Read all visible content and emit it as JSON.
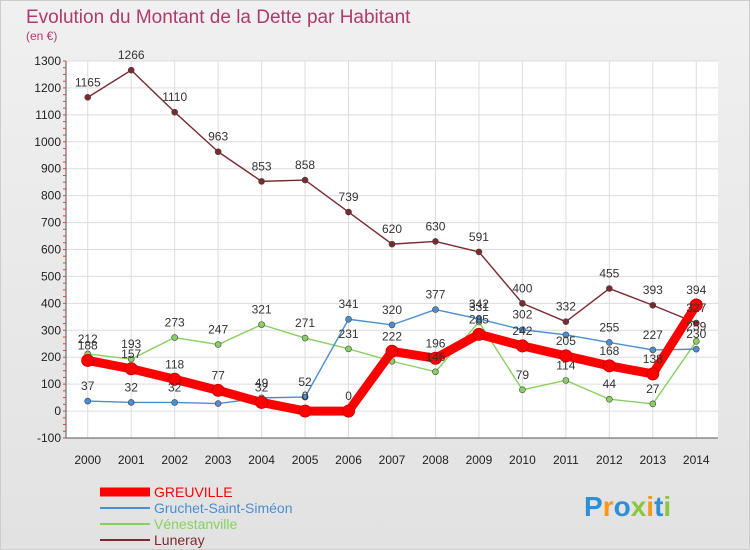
{
  "chart_data": {
    "type": "line",
    "title": "Evolution du Montant de la Dette par Habitant",
    "subtitle": "(en €)",
    "x": [
      "2000",
      "2001",
      "2002",
      "2003",
      "2004",
      "2005",
      "2006",
      "2007",
      "2008",
      "2009",
      "2010",
      "2011",
      "2012",
      "2013",
      "2014"
    ],
    "ylim": [
      -100,
      1300
    ],
    "yticks": [
      -100,
      0,
      100,
      200,
      300,
      400,
      500,
      600,
      700,
      800,
      900,
      1000,
      1100,
      1200,
      1300
    ],
    "grid": true,
    "legend_position": "bottom-left",
    "series": [
      {
        "name": "GREUVILLE",
        "color": "#ff0000",
        "values": [
          188,
          157,
          118,
          77,
          32,
          0,
          0,
          222,
          196,
          285,
          242,
          205,
          168,
          138,
          394
        ]
      },
      {
        "name": "Gruchet-Saint-Siméon",
        "color": "#4a8fd0",
        "values": [
          37,
          32,
          32,
          28,
          49,
          52,
          341,
          320,
          377,
          342,
          302,
          283,
          255,
          227,
          230
        ]
      },
      {
        "name": "Vénestanville",
        "color": "#88d060",
        "values": [
          212,
          193,
          273,
          247,
          321,
          271,
          231,
          185,
          146,
          331,
          79,
          114,
          44,
          27,
          259
        ]
      },
      {
        "name": "Luneray",
        "color": "#7a2a30",
        "values": [
          1165,
          1266,
          1110,
          963,
          853,
          858,
          739,
          620,
          630,
          591,
          400,
          332,
          455,
          393,
          327
        ]
      }
    ],
    "data_labels": [
      {
        "series": 0,
        "labels": [
          "188",
          "157",
          "118",
          "77",
          "32",
          "0",
          "0",
          "222",
          "196",
          "285",
          "242",
          "205",
          "168",
          "138",
          "394"
        ]
      },
      {
        "series": 1,
        "labels": [
          "37",
          "32",
          "32",
          "",
          "49",
          "52",
          "341",
          "320",
          "377",
          "342",
          "302",
          "",
          "255",
          "227",
          "230"
        ]
      },
      {
        "series": 2,
        "labels": [
          "212",
          "193",
          "273",
          "247",
          "321",
          "271",
          "231",
          "",
          "146",
          "331",
          "79",
          "114",
          "44",
          "27",
          "259"
        ]
      },
      {
        "series": 3,
        "labels": [
          "1165",
          "1266",
          "1110",
          "963",
          "853",
          "858",
          "739",
          "620",
          "630",
          "591",
          "400",
          "332",
          "455",
          "393",
          "327"
        ]
      }
    ]
  },
  "logo": {
    "text": "Proxiti"
  }
}
